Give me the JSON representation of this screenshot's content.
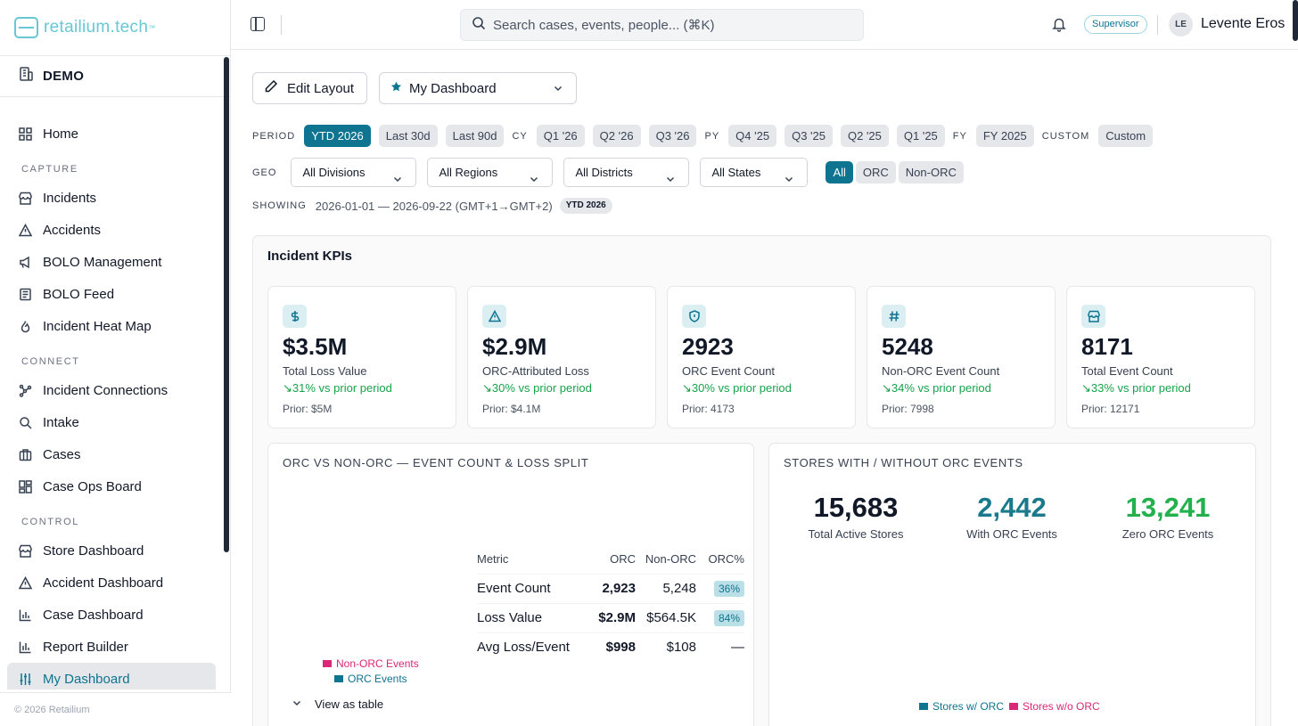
{
  "brand": {
    "name": "retailium.tech",
    "tm": "™"
  },
  "org": {
    "label": "DEMO"
  },
  "nav": {
    "home": "Home",
    "capture_title": "CAPTURE",
    "incidents": "Incidents",
    "accidents": "Accidents",
    "bolo_management": "BOLO Management",
    "bolo_feed": "BOLO Feed",
    "incident_heat_map": "Incident Heat Map",
    "connect_title": "CONNECT",
    "incident_connections": "Incident Connections",
    "intake": "Intake",
    "cases": "Cases",
    "case_ops_board": "Case Ops Board",
    "control_title": "CONTROL",
    "store_dashboard": "Store Dashboard",
    "accident_dashboard": "Accident Dashboard",
    "case_dashboard": "Case Dashboard",
    "report_builder": "Report Builder",
    "my_dashboard": "My Dashboard"
  },
  "footer": {
    "copyright": "© 2026 Retailium"
  },
  "header": {
    "search_placeholder": "Search cases, events, people... (⌘K)",
    "role": "Supervisor",
    "avatar_initials": "LE",
    "user_name": "Levente Eros"
  },
  "toolbar": {
    "edit_layout": "Edit Layout",
    "dashboard_select": "My Dashboard"
  },
  "period": {
    "label": "PERIOD",
    "presets": [
      "YTD 2026",
      "Last 30d",
      "Last 90d"
    ],
    "cy_label": "CY",
    "cy": [
      "Q1 '26",
      "Q2 '26",
      "Q3 '26"
    ],
    "py_label": "PY",
    "py": [
      "Q4 '25",
      "Q3 '25",
      "Q2 '25",
      "Q1 '25"
    ],
    "fy_label": "FY",
    "fy": [
      "FY 2025"
    ],
    "custom_label": "CUSTOM",
    "custom": "Custom"
  },
  "geo": {
    "label": "GEO",
    "divisions": "All Divisions",
    "regions": "All Regions",
    "districts": "All Districts",
    "states": "All States",
    "segments": [
      "All",
      "ORC",
      "Non-ORC"
    ]
  },
  "showing": {
    "label": "SHOWING",
    "range": "2026-01-01 — 2026-09-22 (GMT+1→GMT+2)",
    "badge": "YTD 2026"
  },
  "kpi_panel": {
    "title": "Incident KPIs",
    "cards": [
      {
        "icon": "dollar-icon",
        "value": "$3.5M",
        "label": "Total Loss Value",
        "change": "↘31% vs prior period",
        "prior": "Prior: $5M"
      },
      {
        "icon": "warning-icon",
        "value": "$2.9M",
        "label": "ORC-Attributed Loss",
        "change": "↘30% vs prior period",
        "prior": "Prior: $4.1M"
      },
      {
        "icon": "shield-icon",
        "value": "2923",
        "label": "ORC Event Count",
        "change": "↘30% vs prior period",
        "prior": "Prior: 4173"
      },
      {
        "icon": "hash-icon",
        "value": "5248",
        "label": "Non-ORC Event Count",
        "change": "↘34% vs prior period",
        "prior": "Prior: 7998"
      },
      {
        "icon": "store-icon",
        "value": "8171",
        "label": "Total Event Count",
        "change": "↘33% vs prior period",
        "prior": "Prior: 12171"
      }
    ]
  },
  "orc_split": {
    "title": "ORC VS NON-ORC — EVENT COUNT & LOSS SPLIT",
    "headers": [
      "Metric",
      "ORC",
      "Non-ORC",
      "ORC%"
    ],
    "rows": [
      {
        "metric": "Event Count",
        "orc": "2,923",
        "non_orc": "5,248",
        "pct": "36%"
      },
      {
        "metric": "Loss Value",
        "orc": "$2.9M",
        "non_orc": "$564.5K",
        "pct": "84%"
      },
      {
        "metric": "Avg Loss/Event",
        "orc": "$998",
        "non_orc": "$108",
        "pct": "—"
      }
    ],
    "legend": [
      "Non-ORC Events",
      "ORC Events"
    ],
    "view_as_table": "View as table"
  },
  "stores": {
    "title": "STORES WITH / WITHOUT ORC EVENTS",
    "stats": [
      {
        "value": "15,683",
        "label": "Total Active Stores"
      },
      {
        "value": "2,442",
        "label": "With ORC Events"
      },
      {
        "value": "13,241",
        "label": "Zero ORC Events"
      }
    ],
    "legend": [
      "Stores w/ ORC",
      "Stores w/o ORC"
    ]
  },
  "colors": {
    "accent": "#0e7490",
    "positive": "#16a34a",
    "non_orc": "#db2777",
    "brand": "#67c7d3"
  }
}
